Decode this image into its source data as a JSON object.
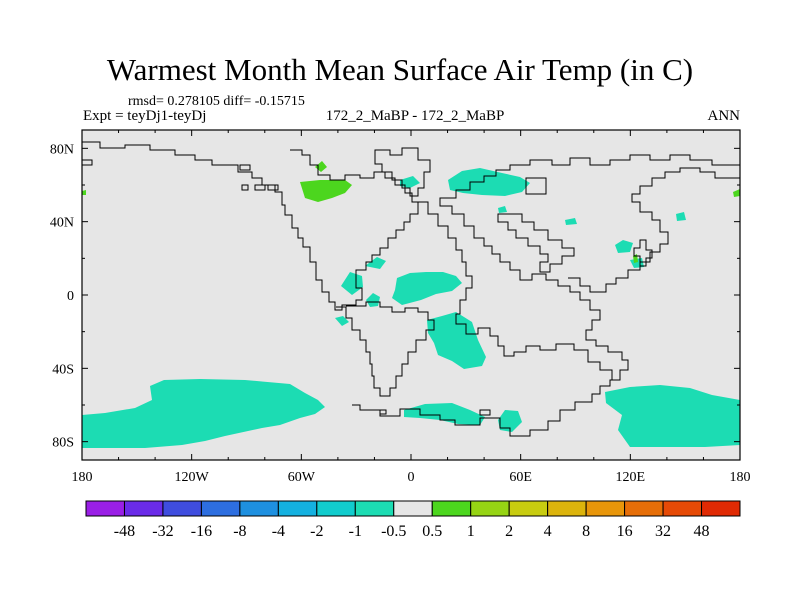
{
  "figure": {
    "title": "Warmest Month Mean Surface Air Temp (in C)",
    "stats": "rmsd= 0.278105 diff= -0.15715",
    "experiment": "Expt = teyDj1-teyDj",
    "center_label": "172_2_MaBP - 172_2_MaBP",
    "season": "ANN"
  },
  "axes": {
    "lon_labels": [
      "180",
      "120W",
      "60W",
      "0",
      "60E",
      "120E",
      "180"
    ],
    "lat_labels": [
      "80N",
      "40N",
      "0",
      "40S",
      "80S"
    ],
    "lon_range": [
      -180,
      180
    ],
    "lat_range": [
      -90,
      90
    ]
  },
  "colorbar": {
    "labels": [
      "-48",
      "-32",
      "-16",
      "-8",
      "-4",
      "-2",
      "-1",
      "-0.5",
      "0.5",
      "1",
      "2",
      "4",
      "8",
      "16",
      "32",
      "48"
    ],
    "colors": [
      "#9a1fe6",
      "#6a2be8",
      "#3f4ddf",
      "#2d6ee0",
      "#1e90e0",
      "#14b1e0",
      "#11cccd",
      "#1cdcb3",
      "#e6e6e6",
      "#4cd61e",
      "#96d414",
      "#c8cc10",
      "#dcb40c",
      "#e8960a",
      "#e66e08",
      "#e64a06",
      "#e02a04"
    ]
  },
  "map": {
    "background_color": "#e6e6e6",
    "colors": {
      "cooling": "#1cdcb3",
      "warming": "#4cd61e"
    }
  }
}
